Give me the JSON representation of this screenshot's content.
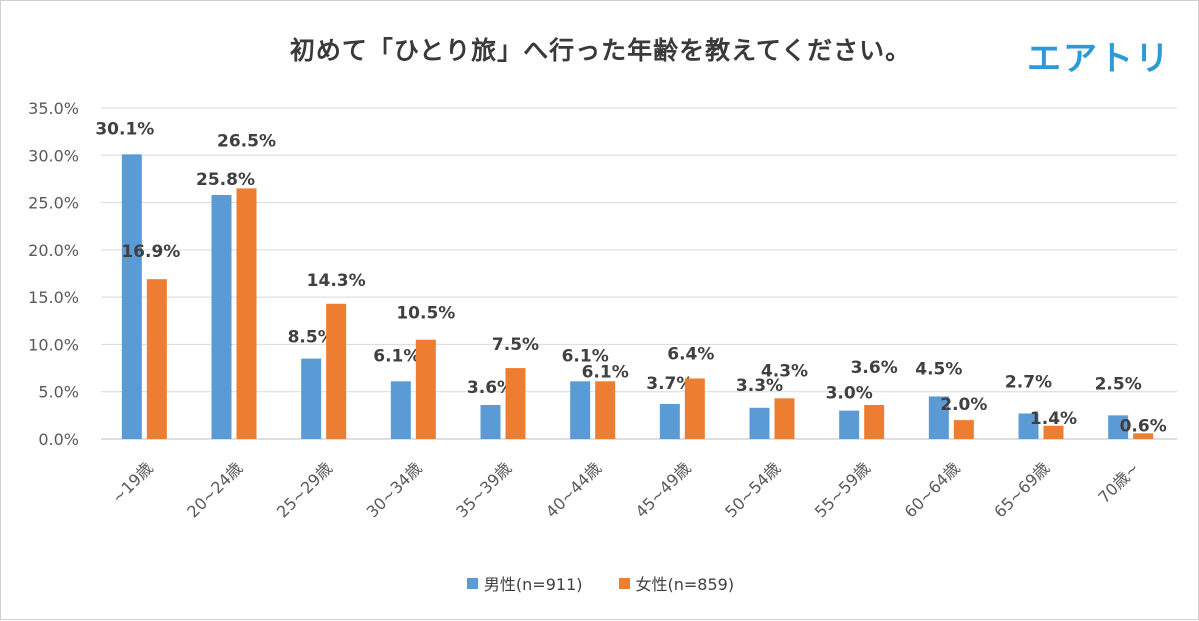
{
  "title": "初めて「ひとり旅」へ行った年齢を教えてください。",
  "logo": "エアトリ",
  "chart_data": {
    "type": "bar",
    "title": "初めて「ひとり旅」へ行った年齢を教えてください。",
    "xlabel": "",
    "ylabel": "",
    "ylim": [
      0,
      35
    ],
    "ytick_labels": [
      "0.0%",
      "5.0%",
      "10.0%",
      "15.0%",
      "20.0%",
      "25.0%",
      "30.0%",
      "35.0%"
    ],
    "ytick_values": [
      0,
      5,
      10,
      15,
      20,
      25,
      30,
      35
    ],
    "grid": true,
    "legend_position": "bottom",
    "categories": [
      "~19歳",
      "20~24歳",
      "25~29歳",
      "30~34歳",
      "35~39歳",
      "40~44歳",
      "45~49歳",
      "50~54歳",
      "55~59歳",
      "60~64歳",
      "65~69歳",
      "70歳~"
    ],
    "series": [
      {
        "name": "男性(n=911)",
        "color": "#5b9bd5",
        "values": [
          30.1,
          25.8,
          8.5,
          6.1,
          3.6,
          6.1,
          3.7,
          3.3,
          3.0,
          4.5,
          2.7,
          2.5
        ],
        "labels": [
          "30.1%",
          "25.8%",
          "8.5%",
          "6.1%",
          "3.6%",
          "6.1%",
          "3.7%",
          "3.3%",
          "3.0%",
          "4.5%",
          "2.7%",
          "2.5%"
        ]
      },
      {
        "name": "女性(n=859)",
        "color": "#ed7d31",
        "values": [
          16.9,
          26.5,
          14.3,
          10.5,
          7.5,
          6.1,
          6.4,
          4.3,
          3.6,
          2.0,
          1.4,
          0.6
        ],
        "labels": [
          "16.9%",
          "26.5%",
          "14.3%",
          "10.5%",
          "7.5%",
          "6.1%",
          "6.4%",
          "4.3%",
          "3.6%",
          "2.0%",
          "1.4%",
          "0.6%"
        ]
      }
    ]
  }
}
